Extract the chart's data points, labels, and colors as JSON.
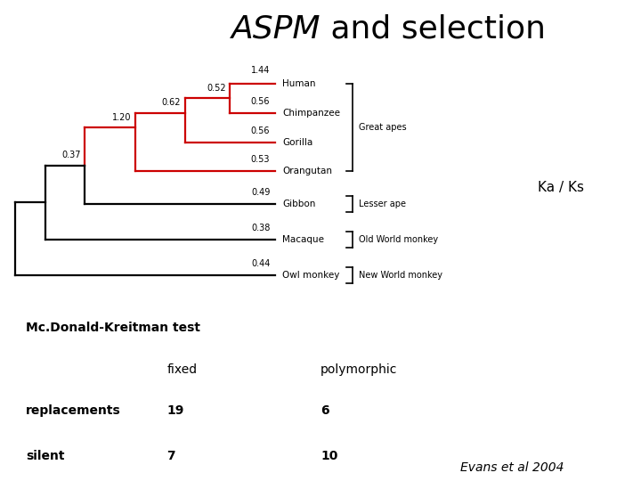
{
  "title_italic": "ASPM",
  "title_rest": " and selection",
  "title_fontsize": 26,
  "background_color": "#ffffff",
  "ka_ks_label": "Ka / Ks",
  "mk_test_title": "Mc.Donald-Kreitman test",
  "mk_header_fixed": "fixed",
  "mk_header_polymorphic": "polymorphic",
  "mk_row1_label": "replacements",
  "mk_row1_fixed": "19",
  "mk_row1_poly": "6",
  "mk_row2_label": "silent",
  "mk_row2_fixed": "7",
  "mk_row2_poly": "10",
  "citation": "Evans et al 2004",
  "tree_color_red": "#cc0000",
  "tree_color_black": "#000000",
  "species": [
    "Human",
    "Chimpanzee",
    "Gorilla",
    "Orangutan",
    "Gibbon",
    "Macaque",
    "Owl monkey"
  ],
  "ka_ks_values": [
    "1.44",
    "0.56",
    "0.56",
    "0.53",
    "0.49",
    "0.38",
    "0.44"
  ],
  "ka_ks_1_44": "1.44",
  "node_label_052": "0.52",
  "node_label_062": "0.62",
  "node_label_120": "1.20",
  "node_label_037": "0.37"
}
